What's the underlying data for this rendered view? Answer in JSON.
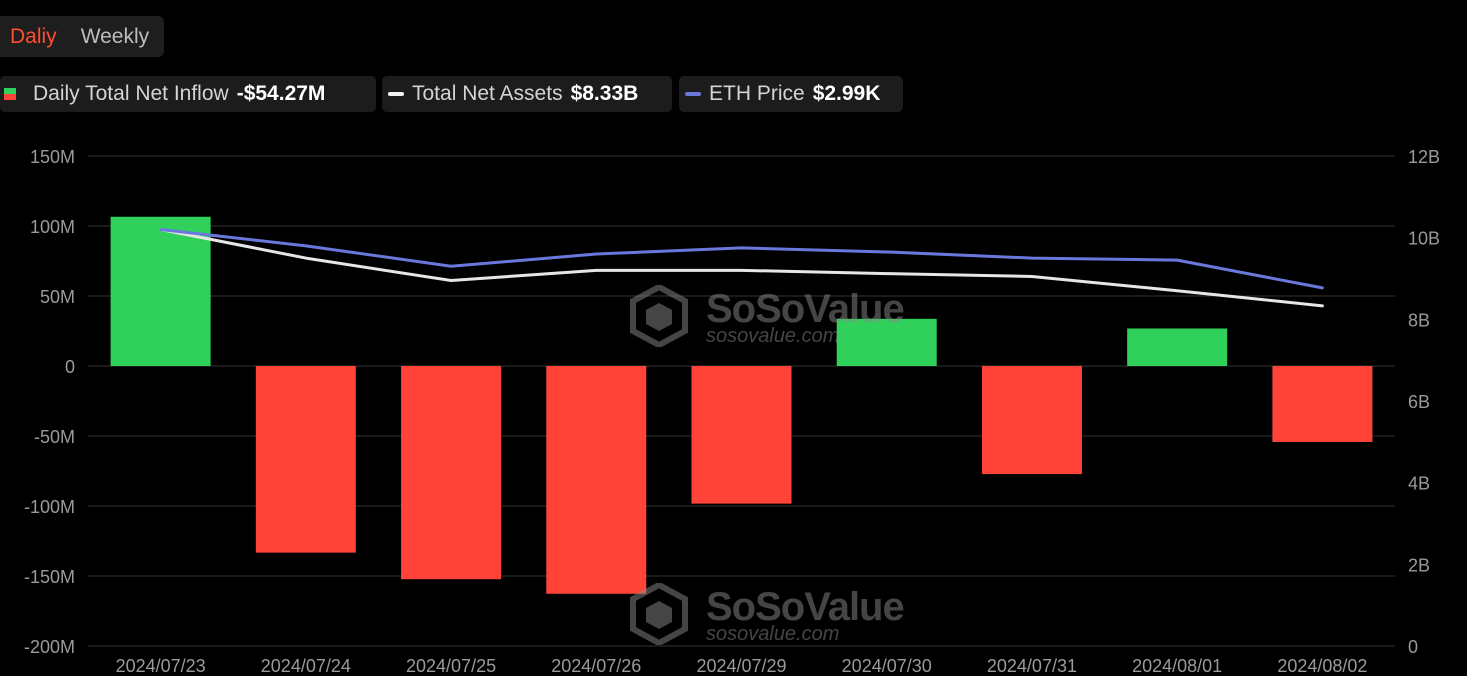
{
  "tabs": {
    "daily": "Daliy",
    "weekly": "Weekly"
  },
  "legend": {
    "inflow": {
      "label": "Daily Total Net Inflow",
      "value": "-$54.27M"
    },
    "assets": {
      "label": "Total Net Assets",
      "value": "$8.33B"
    },
    "eth": {
      "label": "ETH Price",
      "value": "$2.99K"
    }
  },
  "watermark": {
    "name": "SoSoValue",
    "url": "sosovalue.com"
  },
  "colors": {
    "positive": "#2fd15a",
    "negative": "#ff4339",
    "assets_line": "#e6e6e6",
    "eth_line": "#6a78dc",
    "grid": "#333333",
    "axis_text": "#9a9a9a",
    "accent": "#ff4d2e"
  },
  "chart_data": {
    "type": "bar",
    "categories": [
      "2024/07/23",
      "2024/07/24",
      "2024/07/25",
      "2024/07/26",
      "2024/07/29",
      "2024/07/30",
      "2024/07/31",
      "2024/08/01",
      "2024/08/02"
    ],
    "series": [
      {
        "name": "Daily Total Net Inflow",
        "type": "bar",
        "axis": "left",
        "unit": "M",
        "values": [
          106.6,
          -133.3,
          -152.3,
          -162.7,
          -98.3,
          33.7,
          -77.2,
          26.8,
          -54.27
        ]
      },
      {
        "name": "Total Net Assets",
        "type": "line",
        "axis": "right",
        "unit": "B",
        "values": [
          10.2,
          9.5,
          8.95,
          9.2,
          9.2,
          9.12,
          9.05,
          8.7,
          8.33
        ]
      },
      {
        "name": "ETH Price",
        "type": "line",
        "axis": "right",
        "values": [
          10.2,
          9.8,
          9.3,
          9.6,
          9.75,
          9.65,
          9.5,
          9.45,
          8.77
        ]
      }
    ],
    "left_axis": {
      "ticks": [
        150,
        100,
        50,
        0,
        -50,
        -100,
        -150,
        -200
      ],
      "labels": [
        "150M",
        "100M",
        "50M",
        "0",
        "-50M",
        "-100M",
        "-150M",
        "-200M"
      ],
      "range": [
        -200,
        150
      ]
    },
    "right_axis": {
      "ticks": [
        12,
        10,
        8,
        6,
        4,
        2,
        0
      ],
      "labels": [
        "12B",
        "10B",
        "8B",
        "6B",
        "4B",
        "2B",
        "0"
      ],
      "range": [
        0,
        12
      ]
    },
    "grid": true,
    "legend_position": "top-left"
  }
}
